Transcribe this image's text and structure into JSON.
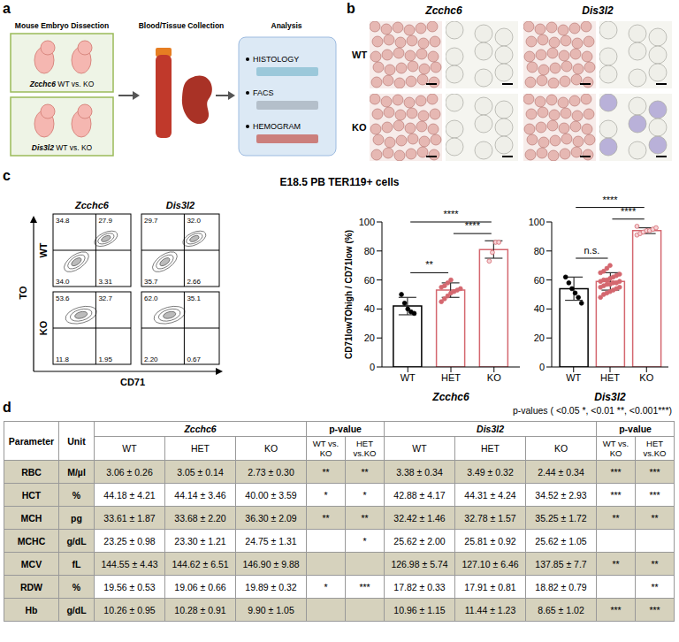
{
  "panel_a": {
    "letter": "a",
    "headers": [
      "Mouse Embryo Dissection",
      "Blood/Tissue Collection",
      "Analysis"
    ],
    "groups": [
      {
        "gene": "Zcchc6",
        "text": "WT vs. KO"
      },
      {
        "gene": "Dis3l2",
        "text": "WT vs. KO"
      }
    ],
    "analysis_items": [
      "HISTOLOGY",
      "FACS",
      "HEMOGRAM"
    ]
  },
  "panel_b": {
    "letter": "b",
    "genes": [
      "Zcchc6",
      "Dis3l2"
    ],
    "rows": [
      "WT",
      "KO"
    ]
  },
  "panel_c": {
    "letter": "c",
    "title": "E18.5 PB TER119+ cells",
    "facs": {
      "x_label": "CD71",
      "y_label": "TO",
      "genes": [
        "Zcchc6",
        "Dis3l2"
      ],
      "rows": [
        "WT",
        "KO"
      ],
      "quadrants": [
        [
          [
            "34.8",
            "27.9",
            "34.0",
            "3.31"
          ],
          [
            "29.7",
            "32.0",
            "35.7",
            "2.66"
          ]
        ],
        [
          [
            "53.6",
            "32.7",
            "11.8",
            "1.95"
          ],
          [
            "62.0",
            "35.1",
            "2.20",
            "0.67"
          ]
        ]
      ]
    }
  },
  "chart_data": [
    {
      "type": "bar",
      "x_label": "Zcchc6",
      "y_label": "CD71lowTOhigh / CD71low (%)",
      "categories": [
        "WT",
        "HET",
        "KO"
      ],
      "values": [
        42,
        53,
        81
      ],
      "errors": [
        6,
        5,
        6
      ],
      "points": [
        [
          50,
          44,
          40,
          38,
          37
        ],
        [
          45,
          47,
          49,
          51,
          52,
          53,
          54,
          55,
          56,
          58,
          60
        ],
        [
          73,
          79,
          86,
          86
        ]
      ],
      "colors": [
        "#000000",
        "#d4676f",
        "#d4676f"
      ],
      "ylim": [
        0,
        100
      ],
      "yticks": [
        0,
        20,
        40,
        60,
        80,
        100
      ],
      "annotations": [
        {
          "from": "WT",
          "to": "HET",
          "label": "**"
        },
        {
          "from": "HET",
          "to": "KO",
          "label": "****"
        },
        {
          "from": "WT",
          "to": "KO",
          "label": "****"
        }
      ]
    },
    {
      "type": "bar",
      "x_label": "Dis3l2",
      "categories": [
        "WT",
        "HET",
        "KO"
      ],
      "values": [
        54,
        59,
        94
      ],
      "errors": [
        8,
        6,
        2
      ],
      "points": [
        [
          62,
          58,
          54,
          51,
          48,
          44
        ],
        [
          48,
          50,
          51,
          52,
          53,
          54,
          55,
          55,
          56,
          57,
          57,
          58,
          58,
          59,
          59,
          60,
          60,
          61,
          62,
          63,
          64,
          65,
          66,
          68,
          70
        ],
        [
          91,
          92,
          93,
          94,
          94,
          95,
          96,
          97
        ]
      ],
      "colors": [
        "#000000",
        "#d4676f",
        "#d4676f"
      ],
      "ylim": [
        0,
        100
      ],
      "yticks": [
        0,
        20,
        40,
        60,
        80,
        100
      ],
      "annotations": [
        {
          "from": "WT",
          "to": "HET",
          "label": "n.s."
        },
        {
          "from": "HET",
          "to": "KO",
          "label": "****"
        },
        {
          "from": "WT",
          "to": "KO",
          "label": "****"
        }
      ]
    }
  ],
  "panel_d": {
    "letter": "d",
    "note": "p-values ( <0.05 *, <0.01 **, <0.001***)",
    "header": [
      "Parameter",
      "Unit"
    ],
    "groups": [
      {
        "gene": "Zcchc6",
        "columns": [
          "WT",
          "HET",
          "KO"
        ],
        "p_header": "p-value",
        "p_columns": [
          "WT vs. KO",
          "HET vs.KO"
        ]
      },
      {
        "gene": "Dis3l2",
        "columns": [
          "WT",
          "HET",
          "KO"
        ],
        "p_header": "p-value",
        "p_columns": [
          "WT vs. KO",
          "HET vs.KO"
        ]
      }
    ],
    "rows": [
      [
        "RBC",
        "M/µl",
        "3.06 ± 0.26",
        "3.05 ± 0.14",
        "2.73 ± 0.30",
        "**",
        "**",
        "3.38 ± 0.34",
        "3.49 ± 0.32",
        "2.44 ± 0.34",
        "***",
        "***"
      ],
      [
        "HCT",
        "%",
        "44.18 ± 4.21",
        "44.14 ± 3.46",
        "40.00 ± 3.59",
        "*",
        "*",
        "42.88 ± 4.17",
        "44.31 ± 4.24",
        "34.52 ± 2.93",
        "***",
        "***"
      ],
      [
        "MCH",
        "pg",
        "33.61 ± 1.87",
        "33.68 ± 2.20",
        "36.30 ± 2.09",
        "**",
        "**",
        "32.42 ± 1.46",
        "32.78 ± 1.57",
        "35.25 ± 1.72",
        "**",
        "**"
      ],
      [
        "MCHC",
        "g/dL",
        "23.25 ± 0.98",
        "23.30 ± 1.21",
        "24.75 ± 1.31",
        null,
        "*",
        "25.62 ± 2.00",
        "25.81 ± 0.92",
        "25.62 ± 1.05",
        null,
        null
      ],
      [
        "MCV",
        "fL",
        "144.55 ± 4.43",
        "144.62 ± 6.51",
        "146.90 ± 9.88",
        null,
        null,
        "126.98 ± 5.74",
        "127.10 ± 6.46",
        "137.85 ± 7.7",
        "**",
        "**"
      ],
      [
        "RDW",
        "%",
        "19.56 ± 0.53",
        "19.06 ± 0.66",
        "19.89 ± 0.32",
        "*",
        "***",
        "17.82 ± 0.33",
        "17.91 ± 0.81",
        "18.82 ± 0.79",
        null,
        "**"
      ],
      [
        "Hb",
        "g/dL",
        "10.26 ± 0.95",
        "10.28 ± 0.91",
        "9.90 ± 1.05",
        null,
        null,
        "10.96 ± 1.15",
        "11.44 ± 1.23",
        "8.65 ± 1.02",
        "***",
        "***"
      ]
    ]
  }
}
